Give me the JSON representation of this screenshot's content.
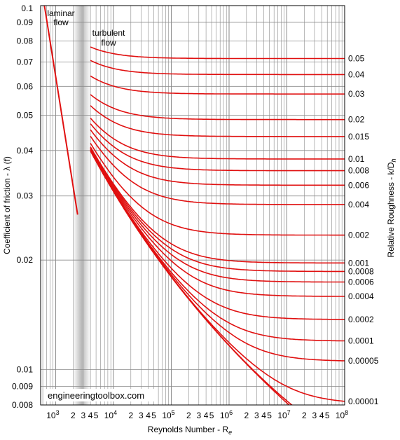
{
  "chart_data": {
    "type": "line",
    "title": "",
    "xlabel": "Reynolds Number - Re",
    "xlabel_main": "Reynolds Number - R",
    "xlabel_sub": "e",
    "ylabel": "Coefficient of friction - λ (f)",
    "ylabel_right": "Relative Roughness - k/Dh",
    "ylabel_right_main": "Relative Roughness - k/D",
    "ylabel_right_sub": "h",
    "x_scale": "log",
    "y_scale": "log",
    "xlim": [
      550,
      100000000
    ],
    "ylim": [
      0.008,
      0.1
    ],
    "grid": true,
    "x_decade_labels": [
      {
        "base": "10",
        "exp": "3",
        "value": 1000
      },
      {
        "base": "10",
        "exp": "4",
        "value": 10000
      },
      {
        "base": "10",
        "exp": "5",
        "value": 100000
      },
      {
        "base": "10",
        "exp": "6",
        "value": 1000000
      },
      {
        "base": "10",
        "exp": "7",
        "value": 10000000
      },
      {
        "base": "10",
        "exp": "8",
        "value": 100000000
      }
    ],
    "x_minor_labels": [
      "2",
      "3",
      "4",
      "5"
    ],
    "y_ticks": [
      {
        "label": "0.1",
        "value": 0.1
      },
      {
        "label": "0.09",
        "value": 0.09
      },
      {
        "label": "0.08",
        "value": 0.08
      },
      {
        "label": "0.07",
        "value": 0.07
      },
      {
        "label": "0.06",
        "value": 0.06
      },
      {
        "label": "0.05",
        "value": 0.05
      },
      {
        "label": "0.04",
        "value": 0.04
      },
      {
        "label": "0.03",
        "value": 0.03
      },
      {
        "label": "0.02",
        "value": 0.02
      },
      {
        "label": "0.01",
        "value": 0.01
      },
      {
        "label": "0.009",
        "value": 0.009
      },
      {
        "label": "0.008",
        "value": 0.008
      }
    ],
    "laminar": {
      "re_start": 640,
      "re_end": 2400
    },
    "transition_band": [
      2000,
      4000
    ],
    "annotations": [
      "laminar\nflow",
      "turbulent\nflow"
    ],
    "watermark": "engineeringtoolbox.com",
    "curve_re_start": 4000,
    "series": [
      {
        "name": "0.05",
        "roughness": 0.05
      },
      {
        "name": "0.04",
        "roughness": 0.04
      },
      {
        "name": "0.03",
        "roughness": 0.03
      },
      {
        "name": "0.02",
        "roughness": 0.02
      },
      {
        "name": "0.015",
        "roughness": 0.015
      },
      {
        "name": "0.01",
        "roughness": 0.01
      },
      {
        "name": "0.008",
        "roughness": 0.008
      },
      {
        "name": "0.006",
        "roughness": 0.006
      },
      {
        "name": "0.004",
        "roughness": 0.004
      },
      {
        "name": "0.002",
        "roughness": 0.002
      },
      {
        "name": "0.001",
        "roughness": 0.001
      },
      {
        "name": "0.0008",
        "roughness": 0.0008
      },
      {
        "name": "0.0006",
        "roughness": 0.0006
      },
      {
        "name": "0.0004",
        "roughness": 0.0004
      },
      {
        "name": "0.0002",
        "roughness": 0.0002
      },
      {
        "name": "0.0001",
        "roughness": 0.0001
      },
      {
        "name": "0.00005",
        "roughness": 5e-05
      },
      {
        "name": "0.00001",
        "roughness": 1e-05
      },
      {
        "name": "",
        "roughness": 1e-06
      },
      {
        "name": "",
        "roughness": 0
      }
    ],
    "colors": {
      "curve": "#e01010",
      "grid": "#8a8a8a",
      "band": "#b8b8b8",
      "axis": "#000000"
    }
  }
}
